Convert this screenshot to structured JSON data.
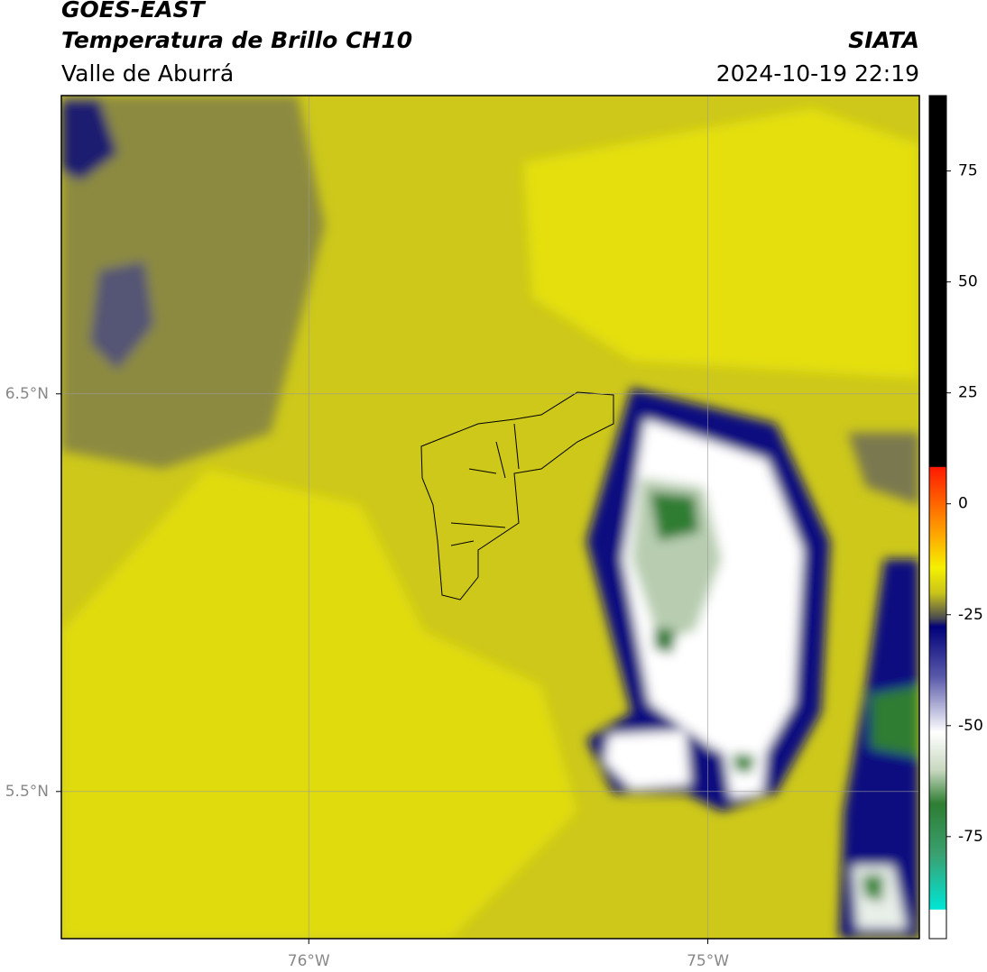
{
  "header": {
    "title": "GOES-EAST",
    "subtitle": "Temperatura de Brillo CH10",
    "region": "Valle de Aburrá",
    "source": "SIATA",
    "datetime": "2024-10-19 22:19"
  },
  "map": {
    "xlim": [
      -76.62,
      -74.47
    ],
    "ylim": [
      5.13,
      7.25
    ],
    "xticks": [
      {
        "value": -76,
        "label": "76°W"
      },
      {
        "value": -75,
        "label": "75°W"
      }
    ],
    "yticks": [
      {
        "value": 6.5,
        "label": "6.5°N"
      },
      {
        "value": 5.5,
        "label": "5.5°N"
      }
    ],
    "grid": true
  },
  "colorbar": {
    "lim": [
      -98,
      92
    ],
    "ticks": [
      75,
      50,
      25,
      0,
      -25,
      -50,
      -75
    ]
  }
}
